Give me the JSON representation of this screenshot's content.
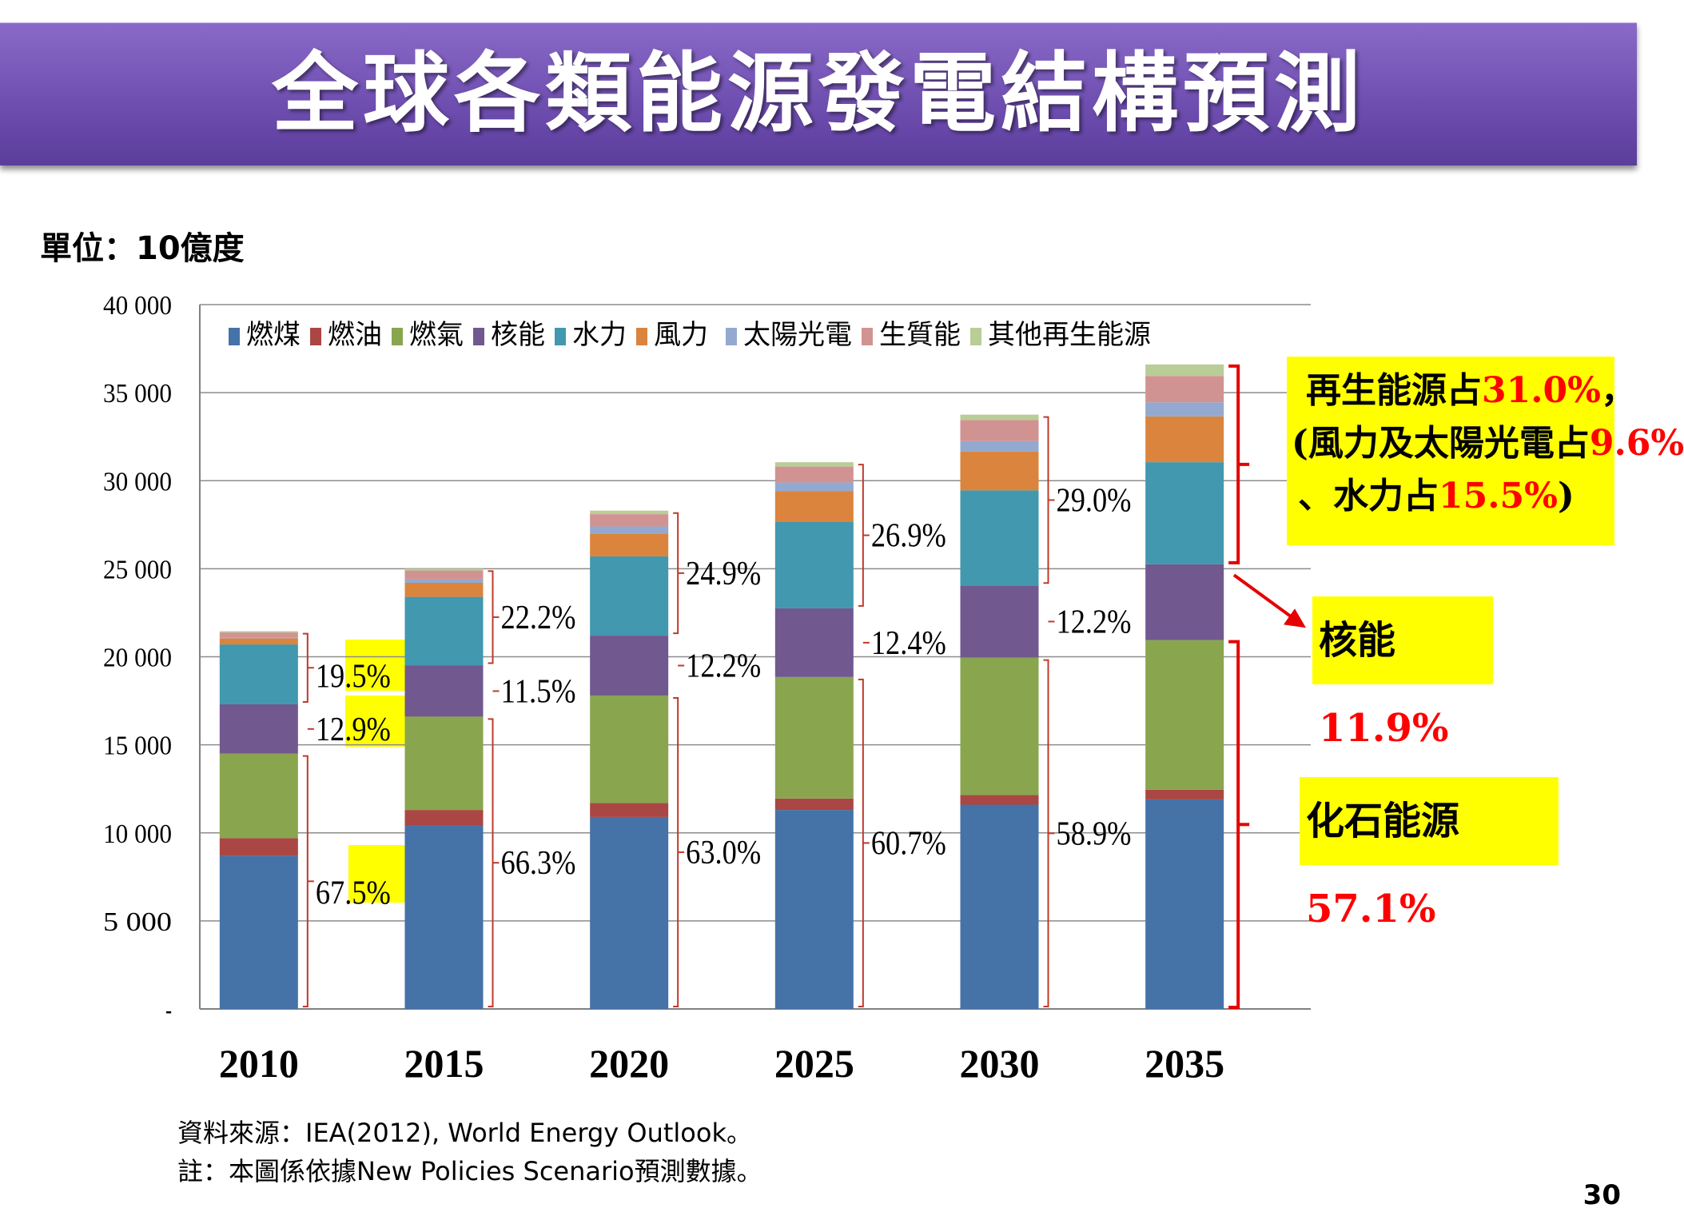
{
  "title": "全球各類能源發電結構預測",
  "unit_label": "單位：10億度",
  "source": "資料來源：IEA(2012), World Energy Outlook。",
  "note": "註：本圖係依據New Policies Scenario預測數據。",
  "page_number": "30",
  "chart_data": {
    "type": "bar",
    "stacked": true,
    "categories": [
      "2010",
      "2015",
      "2020",
      "2025",
      "2030",
      "2035"
    ],
    "ylim": [
      0,
      40000
    ],
    "yticks": [
      "-",
      "5 000",
      "10 000",
      "15 000",
      "20 000",
      "25 000",
      "30 000",
      "35 000",
      "40 000"
    ],
    "grid": true,
    "legend_position": "top",
    "series": [
      {
        "name": "燃煤",
        "color": "#4572a7",
        "values": [
          8700,
          10400,
          10900,
          11300,
          11600,
          11900
        ]
      },
      {
        "name": "燃油",
        "color": "#aa4643",
        "values": [
          1000,
          900,
          800,
          650,
          550,
          550
        ]
      },
      {
        "name": "燃氣",
        "color": "#89a54e",
        "values": [
          4800,
          5300,
          6100,
          6900,
          7800,
          8500
        ]
      },
      {
        "name": "核能",
        "color": "#71588f",
        "values": [
          2800,
          2900,
          3400,
          3900,
          4100,
          4300
        ]
      },
      {
        "name": "水力",
        "color": "#4198af",
        "values": [
          3400,
          3900,
          4500,
          4900,
          5400,
          5800
        ]
      },
      {
        "name": "風力",
        "color": "#db843d",
        "values": [
          350,
          800,
          1300,
          1750,
          2200,
          2600
        ]
      },
      {
        "name": "太陽光電",
        "color": "#93a9cf",
        "values": [
          30,
          200,
          400,
          500,
          600,
          800
        ]
      },
      {
        "name": "生質能",
        "color": "#d19392",
        "values": [
          300,
          500,
          700,
          900,
          1200,
          1500
        ]
      },
      {
        "name": "其他再生能源",
        "color": "#b9cd96",
        "values": [
          70,
          100,
          200,
          250,
          300,
          650
        ]
      }
    ],
    "annotations": [
      {
        "year": "2010",
        "renewable": "19.5%",
        "nuclear": "12.9%",
        "fossil": "67.5%"
      },
      {
        "year": "2015",
        "renewable": "22.2%",
        "nuclear": "11.5%",
        "fossil": "66.3%"
      },
      {
        "year": "2020",
        "renewable": "24.9%",
        "nuclear": "12.2%",
        "fossil": "63.0%"
      },
      {
        "year": "2025",
        "renewable": "26.9%",
        "nuclear": "12.4%",
        "fossil": "60.7%"
      },
      {
        "year": "2030",
        "renewable": "29.0%",
        "nuclear": "12.2%",
        "fossil": "58.9%"
      }
    ],
    "callouts": {
      "renewable_line1_prefix": "再生能源占",
      "renewable_line1_value": "31.0%",
      "renewable_line1_suffix": "，",
      "renewable_line2_prefix": "(風力及太陽光電占",
      "renewable_line2_value": "9.6%",
      "renewable_line3_prefix": "、水力占",
      "renewable_line3_value": "15.5%",
      "renewable_line3_suffix": ")",
      "nuclear_prefix": "核能",
      "nuclear_value": "11.9%",
      "fossil_prefix": "化石能源",
      "fossil_value": "57.1%"
    }
  }
}
